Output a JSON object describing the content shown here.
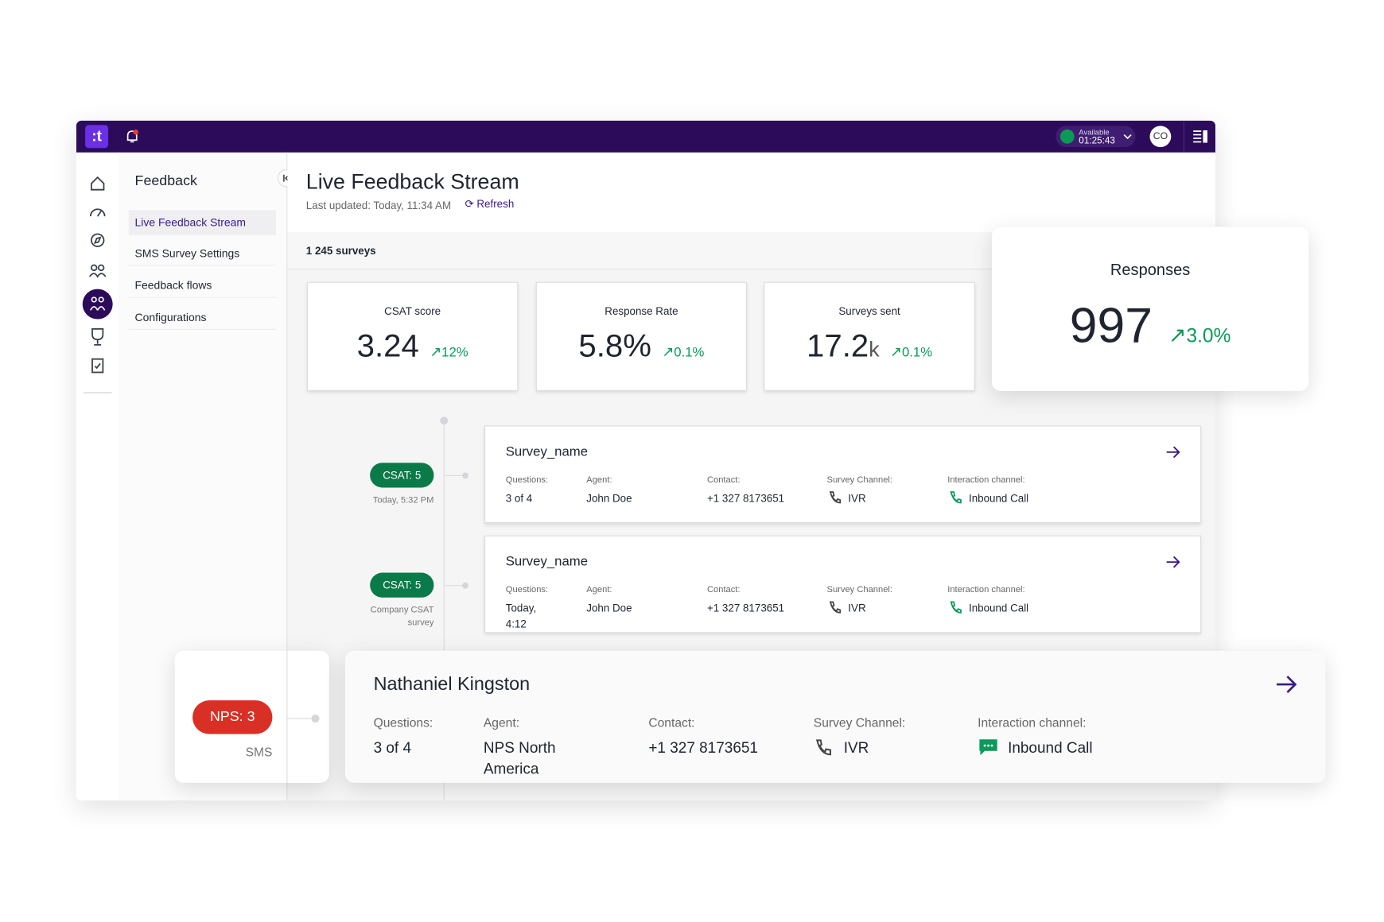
{
  "topbar": {
    "status": "Available",
    "timer": "01:25:43",
    "avatar": "CO"
  },
  "sidebar": {
    "title": "Feedback",
    "items": [
      "Live Feedback Stream",
      "SMS Survey Settings",
      "Feedback flows",
      "Configurations"
    ]
  },
  "header": {
    "title": "Live Feedback Stream",
    "last_updated": "Last updated: Today, 11:34 AM",
    "refresh": "Refresh"
  },
  "surveys_count": "1 245 surveys",
  "metrics": [
    {
      "label": "CSAT score",
      "value": "3.24",
      "change": "12%"
    },
    {
      "label": "Response Rate",
      "value": "5.8%",
      "change": "0.1%"
    },
    {
      "label": "Surveys sent",
      "value": "17.2",
      "unit": "k",
      "change": "0.1%"
    }
  ],
  "responses": {
    "label": "Responses",
    "value": "997",
    "change": "3.0%"
  },
  "feed": [
    {
      "badge": "CSAT: 5",
      "meta": "Today, 5:32 PM",
      "name": "Survey_name",
      "fields": [
        {
          "label": "Questions:",
          "value": "3 of 4"
        },
        {
          "label": "Agent:",
          "value": "John Doe"
        },
        {
          "label": "Contact:",
          "value": "+1 327 8173651"
        },
        {
          "label": "Survey Channel:",
          "value": "IVR"
        },
        {
          "label": "Interaction channel:",
          "value": "Inbound Call"
        }
      ]
    },
    {
      "badge": "CSAT: 5",
      "meta": "Company CSAT survey",
      "name": "Survey_name",
      "fields": [
        {
          "label": "Questions:",
          "value": "Today, 4:12"
        },
        {
          "label": "Agent:",
          "value": "John Doe"
        },
        {
          "label": "Contact:",
          "value": "+1 327 8173651"
        },
        {
          "label": "Survey Channel:",
          "value": "IVR"
        },
        {
          "label": "Interaction channel:",
          "value": "Inbound Call"
        }
      ]
    }
  ],
  "highlight": {
    "badge": "NPS: 3",
    "meta": "SMS",
    "name": "Nathaniel Kingston",
    "fields": [
      {
        "label": "Questions:",
        "value": "3 of 4"
      },
      {
        "label": "Agent:",
        "value": "NPS North America"
      },
      {
        "label": "Contact:",
        "value": "+1 327 8173651"
      },
      {
        "label": "Survey Channel:",
        "value": "IVR"
      },
      {
        "label": "Interaction channel:",
        "value": "Inbound Call"
      }
    ]
  }
}
